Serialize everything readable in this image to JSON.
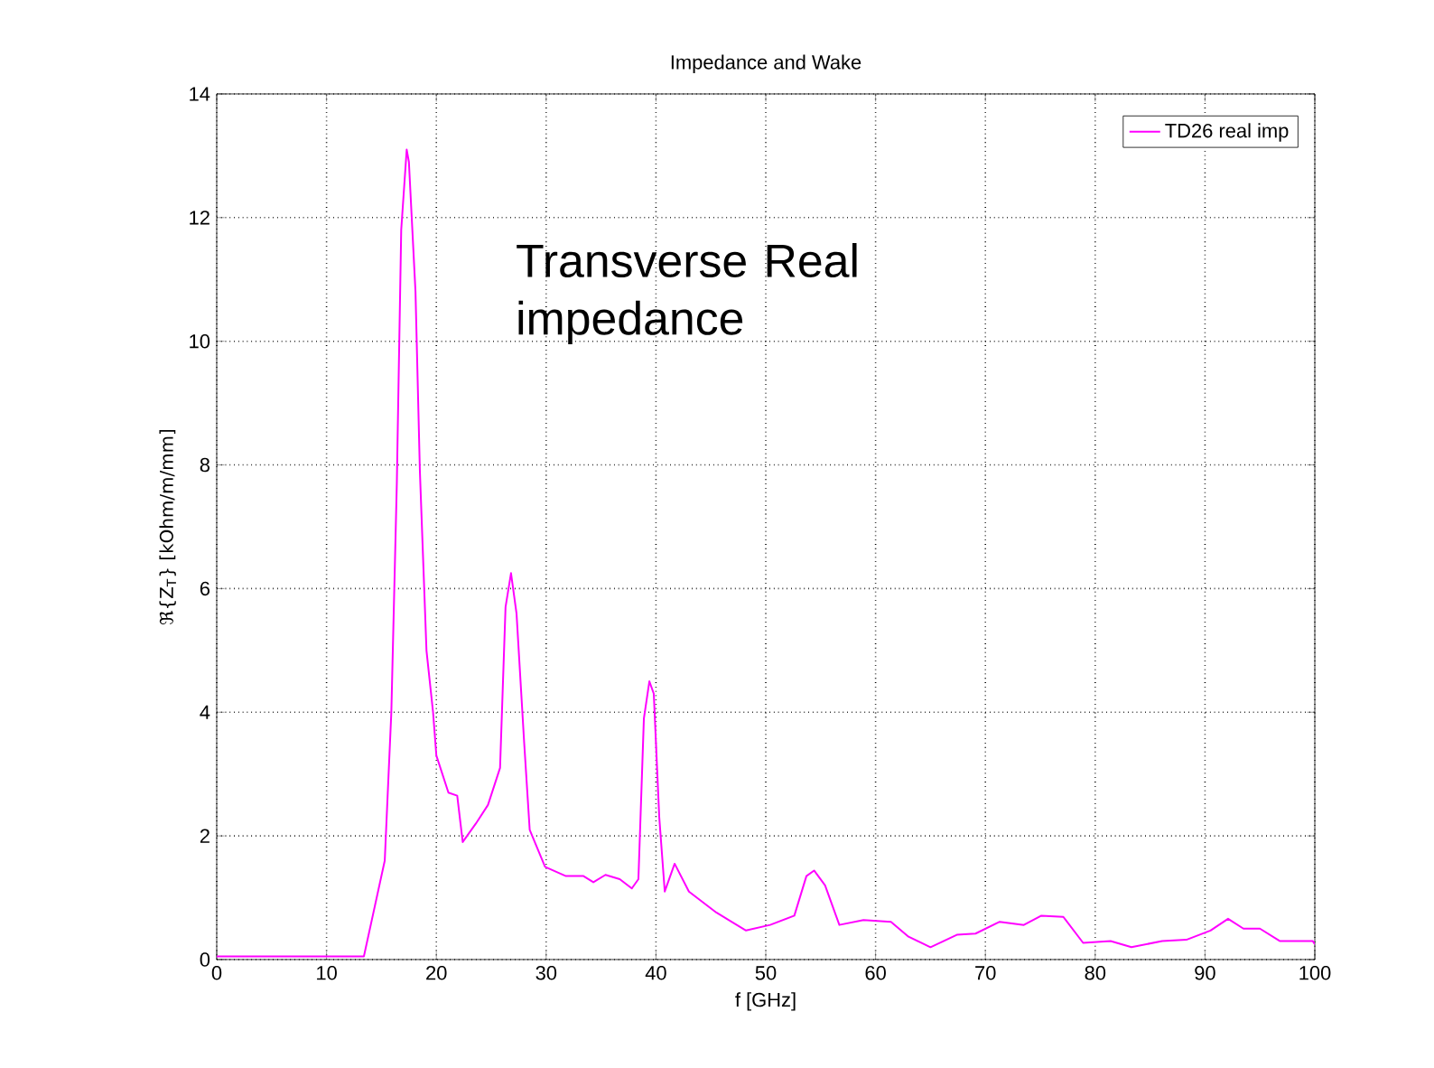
{
  "chart_data": {
    "type": "line",
    "title": "Impedance and Wake",
    "xlabel": "f [GHz]",
    "ylabel": "ℜ{Z$_{T}$} [kOhm/m/mm]",
    "annotations": [
      "Transverse Real impedance"
    ],
    "xlim": [
      0,
      100
    ],
    "ylim": [
      0,
      14
    ],
    "xticks": [
      0,
      10,
      20,
      30,
      40,
      50,
      60,
      70,
      80,
      90,
      100
    ],
    "yticks": [
      0,
      2,
      4,
      6,
      8,
      10,
      12,
      14
    ],
    "grid": true,
    "legend": "top right",
    "line_style": "solid",
    "marker": "none",
    "series": [
      {
        "name": "TD26 real imp",
        "color": "#ff00ff",
        "x": [
          0,
          13.4,
          15.3,
          15.9,
          16.4,
          16.8,
          17.3,
          17.5,
          18.1,
          18.5,
          19.1,
          19.7,
          20.0,
          21.1,
          21.9,
          22.4,
          23.6,
          24.7,
          25.8,
          26.3,
          26.8,
          27.3,
          28.0,
          28.5,
          29.9,
          31.8,
          33.4,
          34.3,
          35.4,
          36.7,
          37.8,
          38.4,
          38.9,
          39.4,
          39.8,
          40.3,
          40.8,
          41.7,
          43.0,
          45.5,
          48.2,
          50.4,
          52.6,
          53.7,
          54.4,
          55.4,
          56.7,
          58.9,
          61.4,
          63.0,
          65.0,
          67.4,
          69.1,
          71.3,
          73.5,
          75.1,
          77.1,
          78.9,
          81.4,
          83.3,
          86.1,
          88.3,
          90.5,
          92.1,
          93.5,
          95.0,
          96.8,
          99.8,
          100
        ],
        "values": [
          0.05,
          0.05,
          1.6,
          4.0,
          7.7,
          11.8,
          13.1,
          12.9,
          10.8,
          7.9,
          5.0,
          4.0,
          3.3,
          2.7,
          2.65,
          1.9,
          2.2,
          2.5,
          3.1,
          5.7,
          6.25,
          5.6,
          3.5,
          2.1,
          1.5,
          1.35,
          1.35,
          1.25,
          1.37,
          1.3,
          1.15,
          1.3,
          3.9,
          4.5,
          4.3,
          2.3,
          1.1,
          1.55,
          1.1,
          0.76,
          0.47,
          0.56,
          0.71,
          1.35,
          1.44,
          1.2,
          0.56,
          0.64,
          0.61,
          0.37,
          0.2,
          0.4,
          0.42,
          0.61,
          0.56,
          0.71,
          0.69,
          0.27,
          0.3,
          0.2,
          0.3,
          0.32,
          0.47,
          0.66,
          0.5,
          0.5,
          0.3,
          0.3,
          0.25
        ]
      }
    ]
  }
}
